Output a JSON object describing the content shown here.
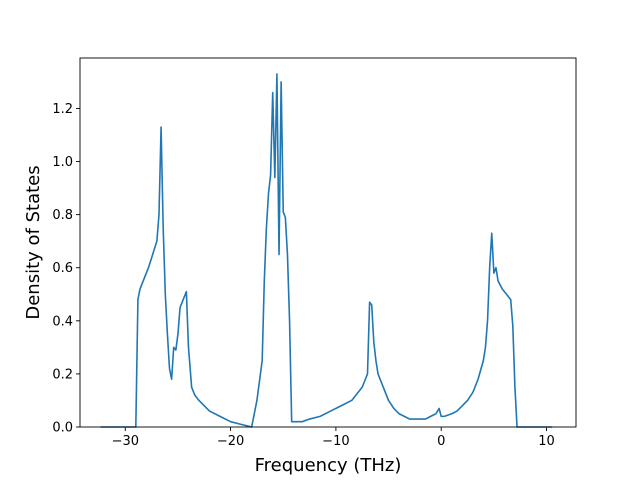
{
  "chart_data": {
    "type": "line",
    "title": "",
    "xlabel": "Frequency (THz)",
    "ylabel": "Density of States",
    "xlim": [
      -34.3,
      12.8
    ],
    "ylim": [
      0.0,
      1.39
    ],
    "xticks": [
      -30,
      -20,
      -10,
      0,
      10
    ],
    "xtick_labels": [
      "−30",
      "−20",
      "−10",
      "0",
      "10"
    ],
    "yticks": [
      0.0,
      0.2,
      0.4,
      0.6,
      0.8,
      1.0,
      1.2
    ],
    "ytick_labels": [
      "0.0",
      "0.2",
      "0.4",
      "0.6",
      "0.8",
      "1.0",
      "1.2"
    ],
    "grid": false,
    "legend": "none",
    "series": [
      {
        "color": "#1f77b4",
        "x": [
          -32.3,
          -30.0,
          -29.0,
          -28.8,
          -28.6,
          -28.2,
          -27.8,
          -27.4,
          -27.0,
          -26.8,
          -26.6,
          -26.4,
          -26.2,
          -26.0,
          -25.8,
          -25.6,
          -25.4,
          -25.2,
          -25.0,
          -24.8,
          -24.5,
          -24.2,
          -24.0,
          -23.7,
          -23.4,
          -23.0,
          -22.5,
          -22.0,
          -21.0,
          -20.0,
          -19.0,
          -18.0,
          -17.5,
          -17.0,
          -16.8,
          -16.6,
          -16.4,
          -16.2,
          -16.0,
          -15.8,
          -15.6,
          -15.4,
          -15.2,
          -15.0,
          -14.8,
          -14.6,
          -14.4,
          -14.2,
          -14.0,
          -13.8,
          -13.6,
          -13.2,
          -12.5,
          -11.5,
          -10.5,
          -9.5,
          -8.5,
          -7.5,
          -7.0,
          -6.8,
          -6.6,
          -6.4,
          -6.2,
          -6.0,
          -5.5,
          -5.0,
          -4.5,
          -4.0,
          -3.5,
          -3.0,
          -2.5,
          -2.0,
          -1.5,
          -1.0,
          -0.5,
          -0.2,
          0.0,
          0.3,
          1.0,
          1.5,
          2.0,
          2.5,
          3.0,
          3.5,
          4.0,
          4.2,
          4.4,
          4.6,
          4.8,
          5.0,
          5.2,
          5.4,
          5.8,
          6.2,
          6.6,
          6.8,
          7.0,
          7.2,
          7.4,
          8.0,
          9.0,
          10.5
        ],
        "y": [
          0.0,
          0.0,
          0.0,
          0.48,
          0.52,
          0.56,
          0.6,
          0.65,
          0.7,
          0.8,
          1.13,
          0.75,
          0.5,
          0.35,
          0.22,
          0.18,
          0.3,
          0.29,
          0.35,
          0.45,
          0.48,
          0.51,
          0.3,
          0.15,
          0.12,
          0.1,
          0.08,
          0.06,
          0.04,
          0.02,
          0.01,
          0.0,
          0.1,
          0.25,
          0.55,
          0.75,
          0.88,
          0.95,
          1.26,
          0.94,
          1.33,
          0.65,
          1.3,
          0.81,
          0.79,
          0.65,
          0.4,
          0.02,
          0.02,
          0.02,
          0.02,
          0.02,
          0.03,
          0.04,
          0.06,
          0.08,
          0.1,
          0.15,
          0.2,
          0.47,
          0.46,
          0.32,
          0.25,
          0.2,
          0.15,
          0.1,
          0.07,
          0.05,
          0.04,
          0.03,
          0.03,
          0.03,
          0.03,
          0.04,
          0.05,
          0.07,
          0.04,
          0.04,
          0.05,
          0.06,
          0.08,
          0.1,
          0.13,
          0.18,
          0.25,
          0.3,
          0.4,
          0.6,
          0.73,
          0.58,
          0.6,
          0.55,
          0.52,
          0.5,
          0.48,
          0.38,
          0.15,
          0.0,
          0.0,
          0.0,
          0.0,
          0.0
        ]
      }
    ]
  }
}
